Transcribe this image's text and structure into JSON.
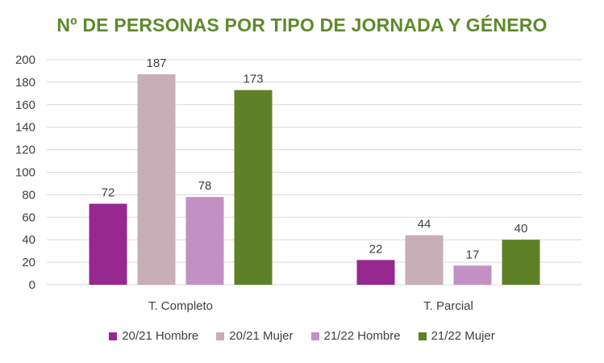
{
  "chart_data": {
    "type": "bar",
    "title": "Nº DE PERSONAS POR TIPO DE JORNADA Y GÉNERO",
    "title_color": "#5E8A2A",
    "categories": [
      "T. Completo",
      "T. Parcial"
    ],
    "series": [
      {
        "name": "20/21 Hombre",
        "values": [
          72,
          22
        ],
        "color": "#962890"
      },
      {
        "name": "20/21 Mujer",
        "values": [
          187,
          44
        ],
        "color": "#C8AEB6"
      },
      {
        "name": "21/22 Hombre",
        "values": [
          78,
          17
        ],
        "color": "#C390C4"
      },
      {
        "name": "21/22 Mujer",
        "values": [
          173,
          40
        ],
        "color": "#5E8128"
      }
    ],
    "ylim": [
      0,
      200
    ],
    "yticks": [
      0,
      20,
      40,
      60,
      80,
      100,
      120,
      140,
      160,
      180,
      200
    ],
    "xlabel": "",
    "ylabel": "",
    "grid": true,
    "legend_position": "bottom"
  }
}
